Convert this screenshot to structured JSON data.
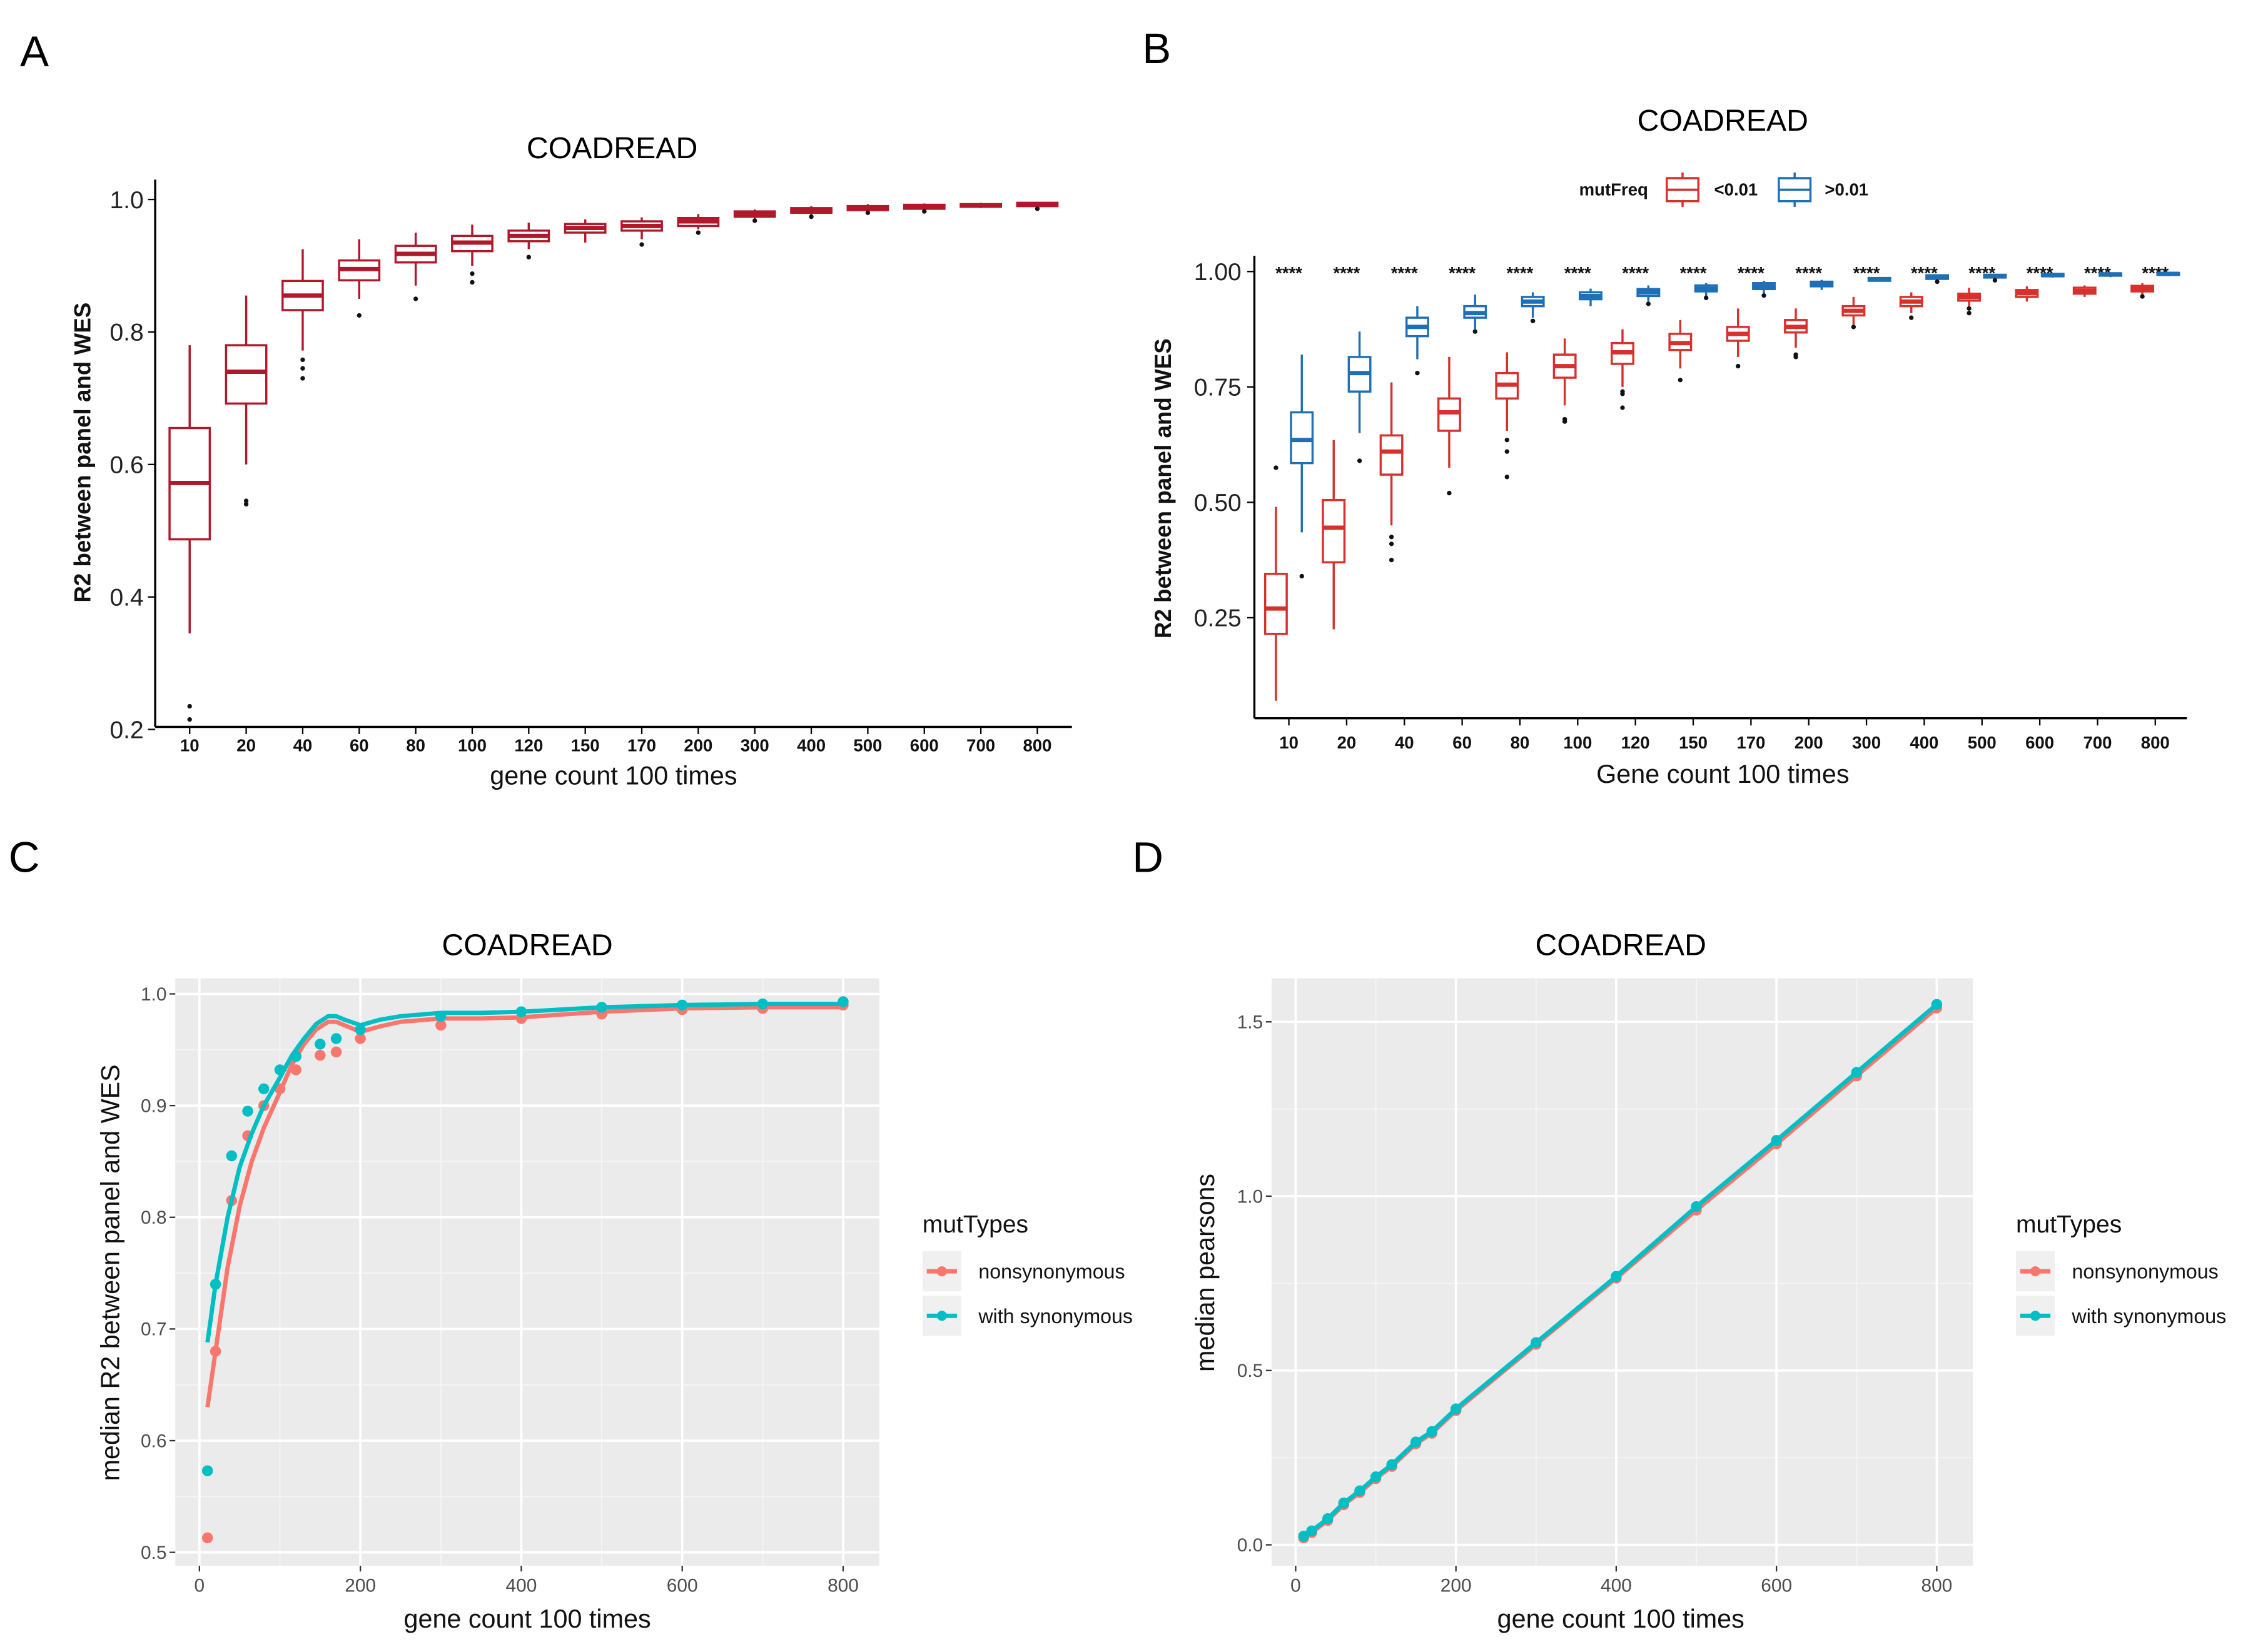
{
  "panel_labels": [
    "A",
    "B",
    "C",
    "D"
  ],
  "chart_data": [
    {
      "panel": "A",
      "type": "box",
      "title": "COADREAD",
      "xlabel": "gene count 100 times",
      "ylabel": "R2 between panel and WES",
      "ylim": [
        0.18,
        1.03
      ],
      "yticks": [
        0.2,
        0.4,
        0.6,
        0.8,
        1.0
      ],
      "ytick_labels": [
        "0.2",
        "0.4",
        "0.6",
        "0.8",
        "1.0"
      ],
      "categories": [
        "10",
        "20",
        "40",
        "60",
        "80",
        "100",
        "120",
        "150",
        "170",
        "200",
        "300",
        "400",
        "500",
        "600",
        "700",
        "800"
      ],
      "color": "#b2182b",
      "box_fields": [
        "q1",
        "median",
        "q3",
        "whisker_low",
        "whisker_high",
        "outliers"
      ],
      "boxes": [
        [
          0.487,
          0.572,
          0.655,
          0.345,
          0.78,
          [
            0.235,
            0.215
          ]
        ],
        [
          0.692,
          0.74,
          0.78,
          0.6,
          0.855,
          [
            0.545,
            0.54
          ]
        ],
        [
          0.833,
          0.855,
          0.877,
          0.772,
          0.925,
          [
            0.758,
            0.745,
            0.73
          ]
        ],
        [
          0.878,
          0.895,
          0.908,
          0.85,
          0.94,
          [
            0.825
          ]
        ],
        [
          0.905,
          0.918,
          0.93,
          0.87,
          0.95,
          [
            0.85
          ]
        ],
        [
          0.922,
          0.935,
          0.945,
          0.9,
          0.962,
          [
            0.888,
            0.875
          ]
        ],
        [
          0.937,
          0.945,
          0.953,
          0.925,
          0.965,
          [
            0.913
          ]
        ],
        [
          0.95,
          0.957,
          0.963,
          0.935,
          0.97,
          []
        ],
        [
          0.953,
          0.96,
          0.967,
          0.94,
          0.973,
          [
            0.932
          ]
        ],
        [
          0.96,
          0.967,
          0.972,
          0.955,
          0.978,
          [
            0.95
          ]
        ],
        [
          0.974,
          0.978,
          0.982,
          0.97,
          0.985,
          [
            0.968
          ]
        ],
        [
          0.98,
          0.984,
          0.987,
          0.977,
          0.99,
          [
            0.974
          ]
        ],
        [
          0.984,
          0.987,
          0.99,
          0.982,
          0.993,
          [
            0.98
          ]
        ],
        [
          0.986,
          0.989,
          0.992,
          0.984,
          0.994,
          [
            0.982
          ]
        ],
        [
          0.989,
          0.991,
          0.993,
          0.987,
          0.995,
          []
        ],
        [
          0.99,
          0.993,
          0.995,
          0.988,
          0.996,
          [
            0.986
          ]
        ]
      ]
    },
    {
      "panel": "B",
      "type": "box",
      "title": "COADREAD",
      "xlabel": "Gene count 100 times",
      "ylabel": "R2 between panel and WES",
      "ylim": [
        0.04,
        1.035
      ],
      "yticks": [
        0.25,
        0.5,
        0.75,
        1.0
      ],
      "ytick_labels": [
        "0.25",
        "0.50",
        "0.75",
        "1.00"
      ],
      "categories": [
        "10",
        "20",
        "40",
        "60",
        "80",
        "100",
        "120",
        "150",
        "170",
        "200",
        "300",
        "400",
        "500",
        "600",
        "700",
        "800"
      ],
      "legend": {
        "title": "mutFreq",
        "position": "top"
      },
      "significance_label": "****",
      "box_fields": [
        "q1",
        "median",
        "q3",
        "whisker_low",
        "whisker_high",
        "outliers"
      ],
      "series": [
        {
          "name": "<0.01",
          "color": "#d7312d",
          "boxes": [
            [
              0.215,
              0.27,
              0.345,
              0.07,
              0.49,
              [
                0.575
              ]
            ],
            [
              0.37,
              0.445,
              0.505,
              0.225,
              0.635,
              []
            ],
            [
              0.56,
              0.61,
              0.645,
              0.45,
              0.76,
              [
                0.425,
                0.41,
                0.375
              ]
            ],
            [
              0.655,
              0.695,
              0.725,
              0.575,
              0.815,
              [
                0.52
              ]
            ],
            [
              0.725,
              0.755,
              0.78,
              0.655,
              0.825,
              [
                0.635,
                0.61,
                0.555
              ]
            ],
            [
              0.77,
              0.795,
              0.82,
              0.71,
              0.855,
              [
                0.68,
                0.675
              ]
            ],
            [
              0.8,
              0.825,
              0.845,
              0.75,
              0.875,
              [
                0.74,
                0.735,
                0.705
              ]
            ],
            [
              0.83,
              0.845,
              0.865,
              0.79,
              0.895,
              [
                0.765
              ]
            ],
            [
              0.85,
              0.865,
              0.88,
              0.815,
              0.92,
              [
                0.795
              ]
            ],
            [
              0.868,
              0.88,
              0.895,
              0.835,
              0.92,
              [
                0.82,
                0.815
              ]
            ],
            [
              0.905,
              0.915,
              0.925,
              0.885,
              0.945,
              [
                0.88
              ]
            ],
            [
              0.925,
              0.935,
              0.945,
              0.91,
              0.955,
              [
                0.9
              ]
            ],
            [
              0.937,
              0.945,
              0.952,
              0.925,
              0.965,
              [
                0.92,
                0.91
              ]
            ],
            [
              0.945,
              0.953,
              0.96,
              0.935,
              0.968,
              []
            ],
            [
              0.952,
              0.958,
              0.965,
              0.945,
              0.97,
              []
            ],
            [
              0.957,
              0.963,
              0.969,
              0.948,
              0.975,
              [
                0.946
              ]
            ]
          ]
        },
        {
          "name": ">0.01",
          "color": "#1f6fb5",
          "boxes": [
            [
              0.585,
              0.635,
              0.695,
              0.435,
              0.82,
              [
                0.34
              ]
            ],
            [
              0.74,
              0.78,
              0.815,
              0.65,
              0.87,
              [
                0.59
              ]
            ],
            [
              0.86,
              0.88,
              0.9,
              0.81,
              0.925,
              [
                0.78
              ]
            ],
            [
              0.9,
              0.91,
              0.925,
              0.875,
              0.95,
              [
                0.87
              ]
            ],
            [
              0.925,
              0.935,
              0.945,
              0.9,
              0.955,
              [
                0.893
              ]
            ],
            [
              0.94,
              0.947,
              0.955,
              0.925,
              0.963,
              []
            ],
            [
              0.947,
              0.955,
              0.962,
              0.935,
              0.97,
              [
                0.93
              ]
            ],
            [
              0.957,
              0.963,
              0.97,
              0.945,
              0.975,
              [
                0.943
              ]
            ],
            [
              0.962,
              0.968,
              0.975,
              0.95,
              0.98,
              [
                0.948
              ]
            ],
            [
              0.968,
              0.973,
              0.978,
              0.96,
              0.982,
              []
            ],
            [
              0.98,
              0.983,
              0.986,
              0.978,
              0.988,
              []
            ],
            [
              0.984,
              0.988,
              0.992,
              0.98,
              0.994,
              [
                0.978
              ]
            ],
            [
              0.987,
              0.99,
              0.993,
              0.983,
              0.995,
              [
                0.981
              ]
            ],
            [
              0.99,
              0.992,
              0.995,
              0.987,
              0.997,
              []
            ],
            [
              0.991,
              0.994,
              0.996,
              0.988,
              0.997,
              []
            ],
            [
              0.993,
              0.995,
              0.997,
              0.99,
              0.998,
              []
            ]
          ]
        }
      ]
    },
    {
      "panel": "C",
      "type": "scatter",
      "title": "COADREAD",
      "xlabel": "gene count 100 times",
      "ylabel": "median R2 between panel and WES",
      "xlim": [
        -30,
        845
      ],
      "ylim": [
        0.488,
        1.014
      ],
      "xticks": [
        0,
        200,
        400,
        600,
        800
      ],
      "yticks": [
        0.5,
        0.6,
        0.7,
        0.8,
        0.9,
        1.0
      ],
      "ytick_labels": [
        "0.5",
        "0.6",
        "0.7",
        "0.8",
        "0.9",
        "1.0"
      ],
      "grid": true,
      "legend": {
        "title": "mutTypes",
        "position": "right"
      },
      "x": [
        10,
        20,
        40,
        60,
        80,
        100,
        120,
        150,
        170,
        200,
        300,
        400,
        500,
        600,
        700,
        800
      ],
      "series": [
        {
          "name": "nonsynonymous",
          "color": "#f8766d",
          "points": [
            0.513,
            0.68,
            0.815,
            0.873,
            0.9,
            0.915,
            0.932,
            0.945,
            0.948,
            0.96,
            0.972,
            0.978,
            0.982,
            0.986,
            0.987,
            0.99
          ],
          "smooth_x": [
            10,
            20,
            35,
            50,
            65,
            80,
            100,
            115,
            130,
            145,
            160,
            170,
            180,
            200,
            225,
            250,
            300,
            350,
            400,
            500,
            600,
            700,
            800
          ],
          "smooth_y": [
            0.63,
            0.68,
            0.755,
            0.81,
            0.85,
            0.88,
            0.912,
            0.937,
            0.955,
            0.968,
            0.975,
            0.975,
            0.972,
            0.966,
            0.971,
            0.975,
            0.978,
            0.978,
            0.979,
            0.984,
            0.987,
            0.988,
            0.988
          ]
        },
        {
          "name": "with synonymous",
          "color": "#00bfc4",
          "points": [
            0.573,
            0.74,
            0.855,
            0.895,
            0.915,
            0.932,
            0.944,
            0.955,
            0.96,
            0.968,
            0.98,
            0.984,
            0.988,
            0.99,
            0.991,
            0.993
          ],
          "smooth_x": [
            10,
            20,
            35,
            50,
            65,
            80,
            100,
            115,
            130,
            145,
            160,
            170,
            180,
            200,
            225,
            250,
            300,
            350,
            400,
            500,
            600,
            700,
            800
          ],
          "smooth_y": [
            0.688,
            0.74,
            0.8,
            0.845,
            0.875,
            0.9,
            0.925,
            0.945,
            0.96,
            0.973,
            0.98,
            0.98,
            0.977,
            0.972,
            0.977,
            0.98,
            0.983,
            0.983,
            0.984,
            0.988,
            0.99,
            0.991,
            0.991
          ]
        }
      ]
    },
    {
      "panel": "D",
      "type": "line",
      "title": "COADREAD",
      "xlabel": "gene count 100 times",
      "ylabel": "median pearsons",
      "xlim": [
        -30,
        845
      ],
      "ylim": [
        -0.06,
        1.625
      ],
      "xticks": [
        0,
        200,
        400,
        600,
        800
      ],
      "yticks": [
        0,
        0.5,
        1.0,
        1.5
      ],
      "ytick_labels": [
        "0.0",
        "0.5",
        "1.0",
        "1.5"
      ],
      "grid": true,
      "legend": {
        "title": "mutTypes",
        "position": "right"
      },
      "x": [
        10,
        20,
        40,
        60,
        80,
        100,
        120,
        150,
        170,
        200,
        300,
        400,
        500,
        600,
        700,
        800
      ],
      "series": [
        {
          "name": "nonsynonymous",
          "color": "#f8766d",
          "values": [
            0.02,
            0.035,
            0.07,
            0.115,
            0.15,
            0.19,
            0.225,
            0.29,
            0.32,
            0.385,
            0.575,
            0.765,
            0.96,
            1.15,
            1.345,
            1.54
          ]
        },
        {
          "name": "with synonymous",
          "color": "#00bfc4",
          "values": [
            0.025,
            0.04,
            0.075,
            0.12,
            0.155,
            0.195,
            0.23,
            0.295,
            0.325,
            0.39,
            0.58,
            0.77,
            0.97,
            1.16,
            1.355,
            1.55
          ]
        }
      ]
    }
  ]
}
